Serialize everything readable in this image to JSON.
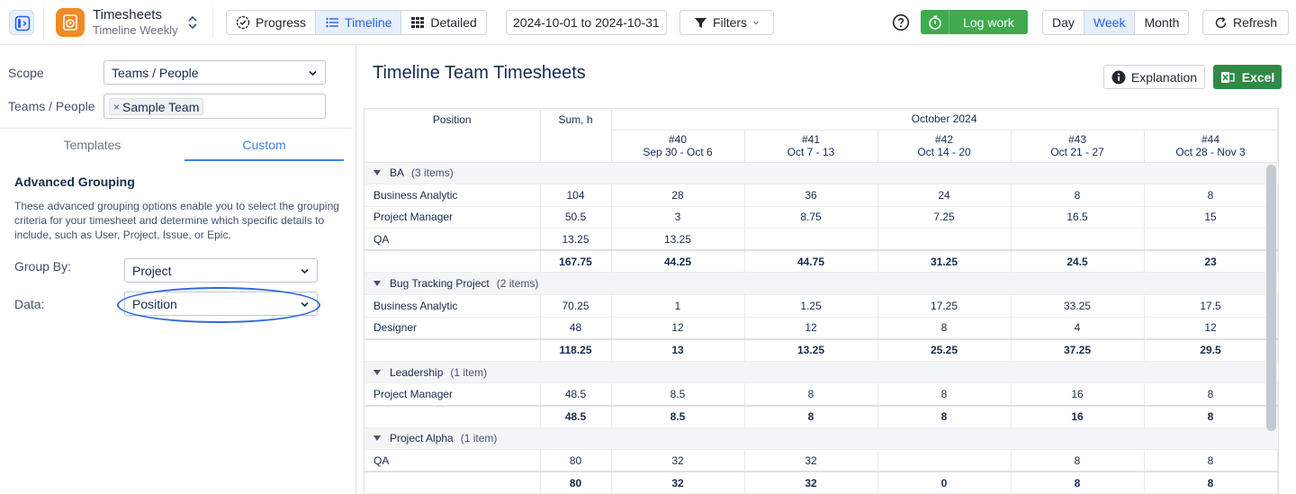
{
  "topbar": {
    "app_title": "Timesheets",
    "app_subtitle": "Timeline Weekly",
    "views": [
      {
        "label": "Progress",
        "icon": "progress-check-icon"
      },
      {
        "label": "Timeline",
        "icon": "list-icon",
        "active": true
      },
      {
        "label": "Detailed",
        "icon": "grid-icon"
      }
    ],
    "date_range": "2024-10-01 to 2024-10-31",
    "filters_label": "Filters",
    "log_work_label": "Log work",
    "periods": [
      {
        "label": "Day"
      },
      {
        "label": "Week",
        "active": true
      },
      {
        "label": "Month"
      }
    ],
    "refresh_label": "Refresh",
    "accent_color": "#2563eb",
    "green_color": "#3faa4e"
  },
  "left": {
    "scope_label": "Scope",
    "scope_value": "Teams / People",
    "teams_label": "Teams / People",
    "team_tag": "Sample Team",
    "tabs": [
      {
        "label": "Templates"
      },
      {
        "label": "Custom",
        "active": true
      }
    ],
    "advanced_title": "Advanced Grouping",
    "advanced_desc": "These advanced grouping options enable you to select the grouping criteria for your timesheet and determine which specific details to include, such as User, Project, Issue, or Epic.",
    "group_by_label": "Group By:",
    "group_by_value": "Project",
    "data_label": "Data:",
    "data_value": "Position"
  },
  "main": {
    "title": "Timeline Team Timesheets",
    "explanation_label": "Explanation",
    "excel_label": "Excel",
    "excel_color": "#2f8a46",
    "table": {
      "col_position": "Position",
      "col_sum": "Sum, h",
      "month": "October 2024",
      "weeks": [
        {
          "num": "#40",
          "range": "Sep 30 - Oct 6"
        },
        {
          "num": "#41",
          "range": "Oct 7 - 13"
        },
        {
          "num": "#42",
          "range": "Oct 14 - 20"
        },
        {
          "num": "#43",
          "range": "Oct 21 - 27"
        },
        {
          "num": "#44",
          "range": "Oct 28 - Nov 3"
        }
      ],
      "groups": [
        {
          "name": "BA",
          "count": "(3 items)",
          "rows": [
            {
              "position": "Business Analytic",
              "sum": "104",
              "weeks": [
                "28",
                "36",
                "24",
                "8",
                "8"
              ]
            },
            {
              "position": "Project Manager",
              "sum": "50.5",
              "weeks": [
                "3",
                "8.75",
                "7.25",
                "16.5",
                "15"
              ]
            },
            {
              "position": "QA",
              "sum": "13.25",
              "weeks": [
                "13.25",
                "",
                "",
                "",
                ""
              ]
            }
          ],
          "total": {
            "sum": "167.75",
            "weeks": [
              "44.25",
              "44.75",
              "31.25",
              "24.5",
              "23"
            ]
          }
        },
        {
          "name": "Bug Tracking Project",
          "count": "(2 items)",
          "rows": [
            {
              "position": "Business Analytic",
              "sum": "70.25",
              "weeks": [
                "1",
                "1.25",
                "17.25",
                "33.25",
                "17.5"
              ]
            },
            {
              "position": "Designer",
              "sum": "48",
              "weeks": [
                "12",
                "12",
                "8",
                "4",
                "12"
              ]
            }
          ],
          "total": {
            "sum": "118.25",
            "weeks": [
              "13",
              "13.25",
              "25.25",
              "37.25",
              "29.5"
            ]
          }
        },
        {
          "name": "Leadership",
          "count": "(1 item)",
          "rows": [
            {
              "position": "Project Manager",
              "sum": "48.5",
              "weeks": [
                "8.5",
                "8",
                "8",
                "16",
                "8"
              ]
            }
          ],
          "total": {
            "sum": "48.5",
            "weeks": [
              "8.5",
              "8",
              "8",
              "16",
              "8"
            ]
          }
        },
        {
          "name": "Project Alpha",
          "count": "(1 item)",
          "rows": [
            {
              "position": "QA",
              "sum": "80",
              "weeks": [
                "32",
                "32",
                "",
                "8",
                "8"
              ]
            }
          ],
          "total": {
            "sum": "80",
            "weeks": [
              "32",
              "32",
              "0",
              "8",
              "8"
            ]
          }
        }
      ]
    }
  }
}
